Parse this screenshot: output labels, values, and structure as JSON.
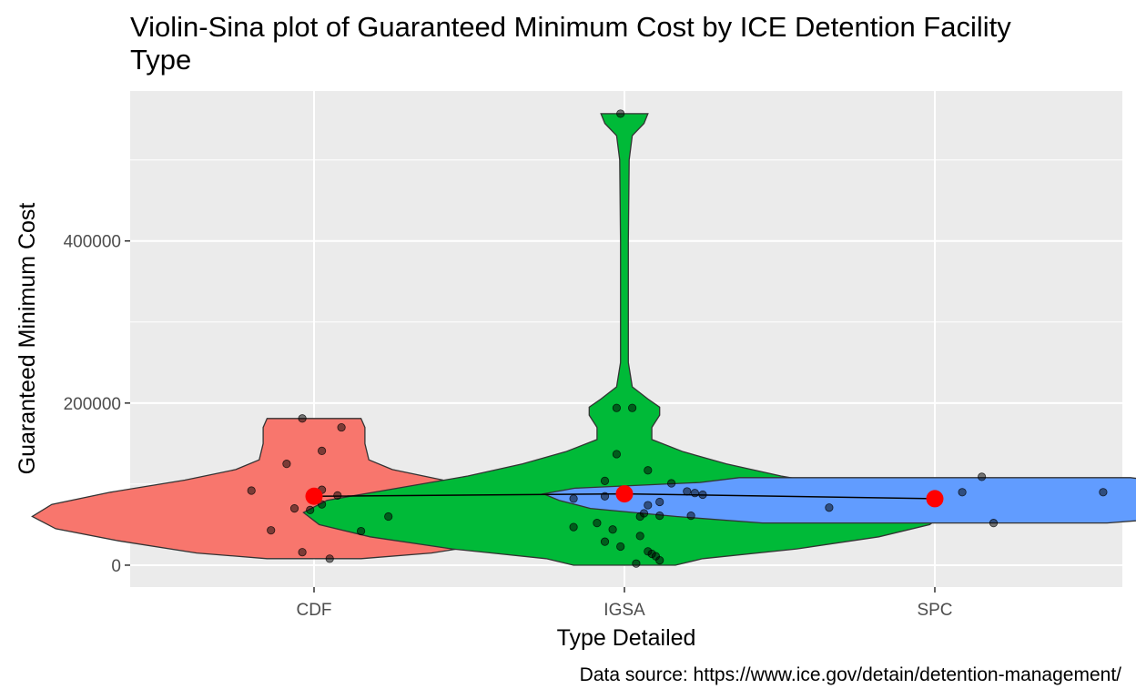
{
  "title": "Violin-Sina plot of Guaranteed Minimum Cost by ICE Detention Facility Type",
  "caption": "Data source: https://www.ice.gov/detain/detention-management/",
  "chart_data": {
    "type": "violin",
    "title": "Violin-Sina plot of Guaranteed Minimum Cost by ICE Detention Facility Type",
    "xlabel": "Type Detailed",
    "ylabel": "Guaranteed Minimum Cost",
    "categories": [
      "CDF",
      "IGSA",
      "SPC"
    ],
    "ylim": [
      -27000,
      585000
    ],
    "y_ticks": [
      0,
      200000,
      400000
    ],
    "y_tick_labels": [
      "0",
      "200000",
      "400000"
    ],
    "grid": true,
    "background": "#EBEBEB",
    "violin_colors": [
      "#F8766D",
      "#00BA38",
      "#619CFF"
    ],
    "mean_color": "#FF0000",
    "violins": [
      {
        "category": "CDF",
        "profile": [
          [
            8000,
            0.12
          ],
          [
            15000,
            0.3
          ],
          [
            30000,
            0.5
          ],
          [
            45000,
            0.66
          ],
          [
            60000,
            0.72
          ],
          [
            75000,
            0.67
          ],
          [
            90000,
            0.52
          ],
          [
            105000,
            0.33
          ],
          [
            118000,
            0.2
          ],
          [
            130000,
            0.14
          ],
          [
            150000,
            0.13
          ],
          [
            170000,
            0.13
          ],
          [
            181000,
            0.12
          ]
        ]
      },
      {
        "category": "IGSA",
        "profile": [
          [
            0,
            0.13
          ],
          [
            8000,
            0.2
          ],
          [
            20000,
            0.44
          ],
          [
            35000,
            0.65
          ],
          [
            50000,
            0.78
          ],
          [
            65000,
            0.82
          ],
          [
            80000,
            0.76
          ],
          [
            95000,
            0.58
          ],
          [
            110000,
            0.4
          ],
          [
            125000,
            0.26
          ],
          [
            140000,
            0.15
          ],
          [
            155000,
            0.07
          ],
          [
            170000,
            0.07
          ],
          [
            185000,
            0.09
          ],
          [
            195000,
            0.09
          ],
          [
            205000,
            0.06
          ],
          [
            220000,
            0.02
          ],
          [
            250000,
            0.01
          ],
          [
            300000,
            0.01
          ],
          [
            400000,
            0.01
          ],
          [
            500000,
            0.012
          ],
          [
            530000,
            0.02
          ],
          [
            545000,
            0.05
          ],
          [
            557000,
            0.06
          ]
        ]
      },
      {
        "category": "SPC",
        "profile": [
          [
            52000,
            0.44
          ],
          [
            60000,
            0.66
          ],
          [
            70000,
            0.88
          ],
          [
            80000,
            0.96
          ],
          [
            88000,
            1.0
          ],
          [
            95000,
            0.92
          ],
          [
            102000,
            0.6
          ],
          [
            108000,
            0.5
          ]
        ]
      }
    ],
    "points": {
      "CDF": [
        [
          181000,
          -0.03
        ],
        [
          170000,
          0.07
        ],
        [
          141000,
          0.02
        ],
        [
          125000,
          -0.07
        ],
        [
          93000,
          0.02
        ],
        [
          92000,
          -0.16
        ],
        [
          86000,
          0.06
        ],
        [
          75000,
          0.02
        ],
        [
          70000,
          -0.05
        ],
        [
          68000,
          -0.01
        ],
        [
          60000,
          0.19
        ],
        [
          43000,
          -0.11
        ],
        [
          42000,
          0.12
        ],
        [
          16000,
          -0.03
        ],
        [
          8000,
          0.04
        ]
      ],
      "IGSA": [
        [
          557000,
          -0.01
        ],
        [
          194000,
          -0.02
        ],
        [
          194000,
          0.02
        ],
        [
          137000,
          -0.02
        ],
        [
          117000,
          0.06
        ],
        [
          104000,
          -0.05
        ],
        [
          101000,
          0.12
        ],
        [
          91000,
          0.16
        ],
        [
          89000,
          0.18
        ],
        [
          87000,
          0.2
        ],
        [
          85000,
          -0.05
        ],
        [
          82000,
          -0.13
        ],
        [
          78000,
          0.09
        ],
        [
          74000,
          0.06
        ],
        [
          64000,
          0.05
        ],
        [
          61000,
          0.17
        ],
        [
          61000,
          0.09
        ],
        [
          60000,
          0.04
        ],
        [
          52000,
          -0.07
        ],
        [
          47000,
          -0.13
        ],
        [
          44000,
          -0.03
        ],
        [
          36000,
          0.04
        ],
        [
          29000,
          -0.05
        ],
        [
          23000,
          -0.01
        ],
        [
          17000,
          0.06
        ],
        [
          14000,
          0.07
        ],
        [
          11000,
          0.08
        ],
        [
          6000,
          0.09
        ],
        [
          2000,
          0.03
        ]
      ],
      "SPC": [
        [
          109000,
          0.12
        ],
        [
          90000,
          0.07
        ],
        [
          90000,
          0.43
        ],
        [
          71000,
          -0.27
        ],
        [
          52000,
          0.15
        ]
      ]
    },
    "means": [
      {
        "category": "CDF",
        "value": 85000
      },
      {
        "category": "IGSA",
        "value": 88000
      },
      {
        "category": "SPC",
        "value": 82000
      }
    ]
  }
}
